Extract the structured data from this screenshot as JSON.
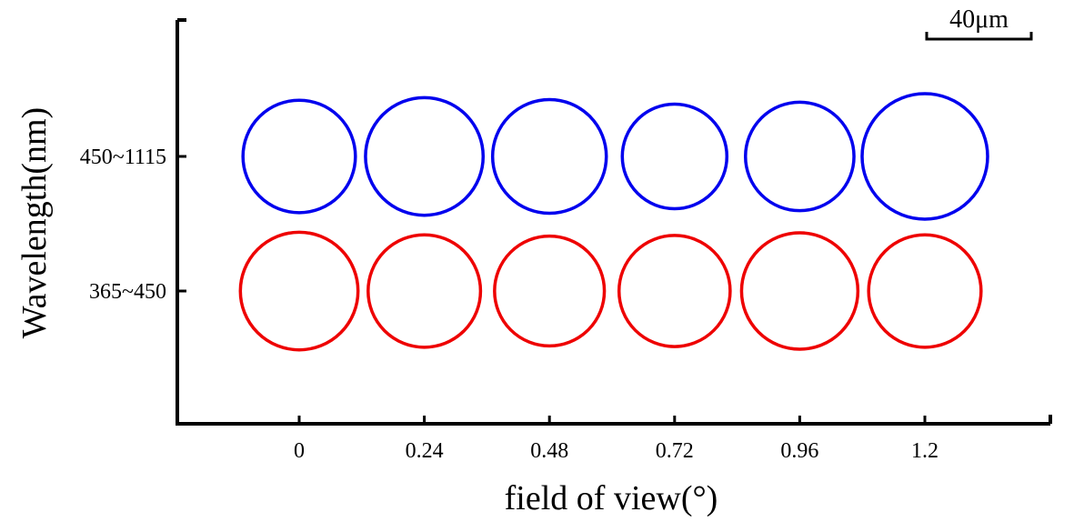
{
  "chart_data": {
    "type": "scatter",
    "title": "",
    "xlabel": "field of view(°)",
    "ylabel": "Wavelength(nm)",
    "x": [
      0,
      0.24,
      0.48,
      0.72,
      0.96,
      1.2
    ],
    "x_tick_labels": [
      "0",
      "0.24",
      "0.48",
      "0.72",
      "0.96",
      "1.2"
    ],
    "y_categories": [
      "450~1115",
      "365~450"
    ],
    "scale_bar_label": "40μm",
    "scale_bar_um": 40,
    "grid": false,
    "series": [
      {
        "category": "450~1115",
        "color": "#0000ee",
        "spot_diameters_um": [
          43,
          45,
          43.5,
          40,
          41.5,
          48
        ]
      },
      {
        "category": "365~450",
        "color": "#ee0000",
        "spot_diameters_um": [
          45,
          43,
          42,
          42.5,
          44.5,
          43
        ]
      }
    ]
  }
}
